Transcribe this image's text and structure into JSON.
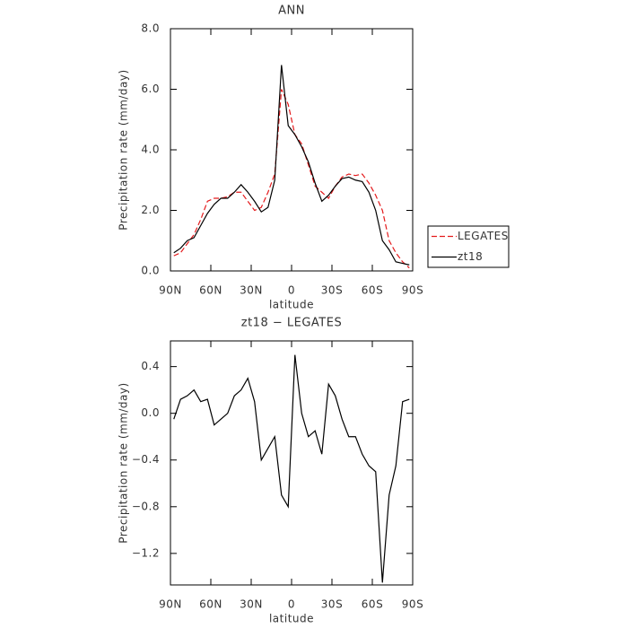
{
  "chart_data": [
    {
      "type": "line",
      "title": "ANN",
      "xlabel": "latitude",
      "ylabel": "Precipitation rate (mm/day)",
      "x": [
        87.5,
        82.5,
        77.5,
        72.5,
        67.5,
        62.5,
        57.5,
        52.5,
        47.5,
        42.5,
        37.5,
        32.5,
        27.5,
        22.5,
        17.5,
        12.5,
        7.5,
        2.5,
        -2.5,
        -7.5,
        -12.5,
        -17.5,
        -22.5,
        -27.5,
        -32.5,
        -37.5,
        -42.5,
        -47.5,
        -52.5,
        -57.5,
        -62.5,
        -67.5,
        -72.5,
        -77.5,
        -82.5,
        -87.5
      ],
      "series": [
        {
          "name": "LEGATES",
          "color": "#e41a1c",
          "line_style": "dashed",
          "values": [
            0.5,
            0.6,
            0.9,
            1.2,
            1.7,
            2.3,
            2.4,
            2.4,
            2.45,
            2.6,
            2.6,
            2.3,
            2.0,
            2.1,
            2.6,
            3.2,
            6.0,
            5.5,
            4.5,
            4.2,
            3.5,
            2.8,
            2.6,
            2.4,
            2.8,
            3.1,
            3.2,
            3.15,
            3.2,
            2.9,
            2.5,
            2.0,
            1.0,
            0.6,
            0.3,
            0.1
          ]
        },
        {
          "name": "zt18",
          "color": "#000000",
          "line_style": "solid",
          "values": [
            0.6,
            0.75,
            1.0,
            1.1,
            1.5,
            1.9,
            2.2,
            2.4,
            2.4,
            2.6,
            2.85,
            2.6,
            2.3,
            1.95,
            2.1,
            3.0,
            6.8,
            4.8,
            4.5,
            4.1,
            3.6,
            2.9,
            2.3,
            2.5,
            2.8,
            3.05,
            3.1,
            3.0,
            2.95,
            2.6,
            2.0,
            1.0,
            0.7,
            0.3,
            0.25,
            0.2
          ]
        }
      ],
      "xlim": [
        90,
        -90
      ],
      "xticks": [
        {
          "value": 90,
          "label": "90N"
        },
        {
          "value": 60,
          "label": "60N"
        },
        {
          "value": 30,
          "label": "30N"
        },
        0,
        {
          "value": -30,
          "label": "30S"
        },
        {
          "value": -60,
          "label": "60S"
        },
        {
          "value": -90,
          "label": "90S"
        }
      ],
      "ylim": [
        0,
        8
      ],
      "yticks": [
        {
          "value": 0,
          "label": "0.0"
        },
        {
          "value": 2,
          "label": "2.0"
        },
        {
          "value": 4,
          "label": "4.0"
        },
        {
          "value": 6,
          "label": "6.0"
        },
        {
          "value": 8,
          "label": "8.0"
        }
      ],
      "legend": "outside-right"
    },
    {
      "type": "line",
      "title": "zt18 − LEGATES",
      "xlabel": "latitude",
      "ylabel": "Precipitation rate (mm/day)",
      "color": "#000000",
      "x": [
        87.5,
        82.5,
        77.5,
        72.5,
        67.5,
        62.5,
        57.5,
        52.5,
        47.5,
        42.5,
        37.5,
        32.5,
        27.5,
        22.5,
        17.5,
        12.5,
        7.5,
        2.5,
        -2.5,
        -7.5,
        -12.5,
        -17.5,
        -22.5,
        -27.5,
        -32.5,
        -37.5,
        -42.5,
        -47.5,
        -52.5,
        -57.5,
        -62.5,
        -67.5,
        -72.5,
        -77.5,
        -82.5,
        -87.5
      ],
      "values": [
        -0.05,
        0.12,
        0.15,
        0.2,
        0.1,
        0.12,
        -0.1,
        -0.05,
        0.0,
        0.15,
        0.2,
        0.3,
        0.1,
        -0.4,
        -0.3,
        -0.2,
        -0.7,
        -0.8,
        0.5,
        0.0,
        -0.2,
        -0.15,
        -0.35,
        0.25,
        0.15,
        -0.05,
        -0.2,
        -0.2,
        -0.35,
        -0.45,
        -0.5,
        -1.45,
        -0.7,
        -0.45,
        0.1,
        0.12
      ],
      "xlim": [
        90,
        -90
      ],
      "xticks": [
        {
          "value": 90,
          "label": "90N"
        },
        {
          "value": 60,
          "label": "60N"
        },
        {
          "value": 30,
          "label": "30N"
        },
        0,
        {
          "value": -30,
          "label": "30S"
        },
        {
          "value": -60,
          "label": "60S"
        },
        {
          "value": -90,
          "label": "90S"
        }
      ],
      "ylim": [
        -1.47,
        0.62
      ],
      "yticks": [
        {
          "value": 0.4,
          "label": "0.4"
        },
        {
          "value": 0,
          "label": "0.0"
        },
        {
          "value": -0.4,
          "label": "−0.4"
        },
        {
          "value": -0.8,
          "label": "−0.8"
        },
        {
          "value": -1.2,
          "label": "−1.2"
        }
      ]
    }
  ]
}
